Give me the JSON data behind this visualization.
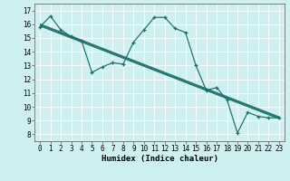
{
  "title": "",
  "xlabel": "Humidex (Indice chaleur)",
  "bg_color": "#cff0f0",
  "grid_color": "#ffffff",
  "line_color": "#1a6e6a",
  "xlim": [
    -0.5,
    23.5
  ],
  "ylim": [
    7.5,
    17.5
  ],
  "xticks": [
    0,
    1,
    2,
    3,
    4,
    5,
    6,
    7,
    8,
    9,
    10,
    11,
    12,
    13,
    14,
    15,
    16,
    17,
    18,
    19,
    20,
    21,
    22,
    23
  ],
  "yticks": [
    8,
    9,
    10,
    11,
    12,
    13,
    14,
    15,
    16,
    17
  ],
  "series": [
    [
      0,
      15.8
    ],
    [
      1,
      16.6
    ],
    [
      2,
      15.6
    ],
    [
      3,
      15.1
    ],
    [
      4,
      14.8
    ],
    [
      5,
      12.5
    ],
    [
      6,
      12.9
    ],
    [
      7,
      13.2
    ],
    [
      8,
      13.1
    ],
    [
      9,
      14.7
    ],
    [
      10,
      15.6
    ],
    [
      11,
      16.5
    ],
    [
      12,
      16.5
    ],
    [
      13,
      15.7
    ],
    [
      14,
      15.4
    ],
    [
      15,
      13.0
    ],
    [
      16,
      11.2
    ],
    [
      17,
      11.4
    ],
    [
      18,
      10.5
    ],
    [
      19,
      8.1
    ],
    [
      20,
      9.6
    ],
    [
      21,
      9.3
    ],
    [
      22,
      9.2
    ],
    [
      23,
      9.2
    ]
  ],
  "trend_line": [
    [
      0,
      15.95
    ],
    [
      23,
      9.2
    ]
  ],
  "trend_offsets": [
    -0.07,
    0.0,
    0.07
  ],
  "tick_fontsize": 5.5,
  "xlabel_fontsize": 6.5,
  "marker": "+",
  "markersize": 3.5,
  "linewidth": 0.85
}
